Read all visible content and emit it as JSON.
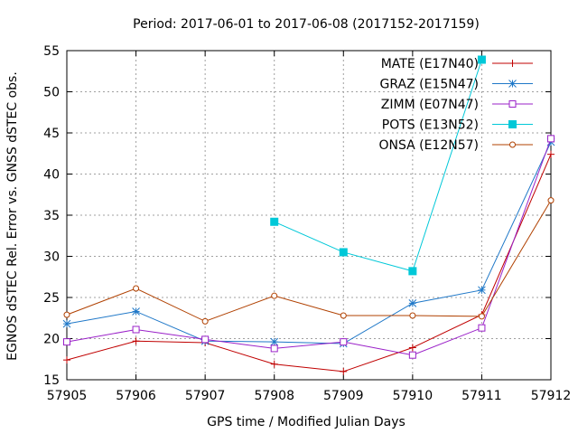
{
  "chart_data": {
    "type": "line",
    "title": "Period: 2017-06-01 to 2017-06-08 (2017152-2017159)",
    "xlabel": "GPS time / Modified Julian Days",
    "ylabel": "EGNOS dSTEC Rel. Error vs. GNSS dSTEC obs.",
    "xlim": [
      57905,
      57912
    ],
    "ylim": [
      15,
      55
    ],
    "xticks": [
      57905,
      57906,
      57907,
      57908,
      57909,
      57910,
      57911,
      57912
    ],
    "yticks": [
      15,
      20,
      25,
      30,
      35,
      40,
      45,
      50,
      55
    ],
    "grid": true,
    "legend_position": "top-right",
    "series": [
      {
        "name": "MATE (E17N40)",
        "color": "#c00000",
        "marker": "plus",
        "points": [
          [
            57905,
            17.4
          ],
          [
            57906,
            19.7
          ],
          [
            57907,
            19.5
          ],
          [
            57908,
            16.9
          ],
          [
            57909,
            16.0
          ],
          [
            57910,
            18.9
          ],
          [
            57911,
            22.9
          ],
          [
            57912,
            42.4
          ]
        ]
      },
      {
        "name": "GRAZ (E15N47)",
        "color": "#1f78c8",
        "marker": "star",
        "points": [
          [
            57905,
            21.8
          ],
          [
            57906,
            23.3
          ],
          [
            57907,
            19.7
          ],
          [
            57908,
            19.6
          ],
          [
            57909,
            19.4
          ],
          [
            57910,
            24.3
          ],
          [
            57911,
            25.9
          ],
          [
            57912,
            43.9
          ]
        ]
      },
      {
        "name": "ZIMM (E07N47)",
        "color": "#9a20c8",
        "marker": "square-open",
        "points": [
          [
            57905,
            19.6
          ],
          [
            57906,
            21.1
          ],
          [
            57907,
            19.9
          ],
          [
            57908,
            18.8
          ],
          [
            57909,
            19.6
          ],
          [
            57910,
            18.0
          ],
          [
            57911,
            21.3
          ],
          [
            57912,
            44.3
          ]
        ]
      },
      {
        "name": "POTS (E13N52)",
        "color": "#00c8d8",
        "marker": "square-filled",
        "points": [
          [
            57908,
            34.2
          ],
          [
            57909,
            30.5
          ],
          [
            57910,
            28.2
          ],
          [
            57911,
            53.9
          ]
        ]
      },
      {
        "name": "ONSA (E12N57)",
        "color": "#b04000",
        "marker": "circle-open",
        "points": [
          [
            57905,
            22.9
          ],
          [
            57906,
            26.1
          ],
          [
            57907,
            22.1
          ],
          [
            57908,
            25.2
          ],
          [
            57909,
            22.8
          ],
          [
            57910,
            22.8
          ],
          [
            57911,
            22.7
          ],
          [
            57912,
            36.8
          ]
        ]
      }
    ]
  }
}
